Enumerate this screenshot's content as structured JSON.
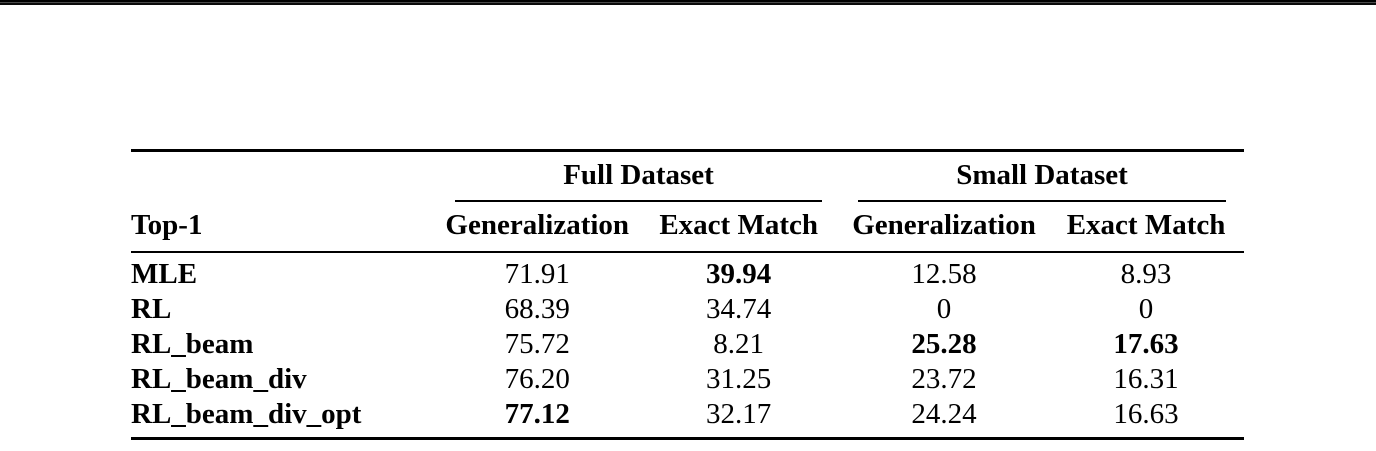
{
  "table": {
    "title_cell": "Top-1",
    "groups": [
      {
        "label": "Full Dataset"
      },
      {
        "label": "Small Dataset"
      }
    ],
    "columns": [
      "Generalization",
      "Exact Match",
      "Generalization",
      "Exact Match"
    ],
    "rows": [
      {
        "label": "MLE",
        "values": [
          "71.91",
          "39.94",
          "12.58",
          "8.93"
        ],
        "bold": [
          false,
          true,
          false,
          false
        ]
      },
      {
        "label": "RL",
        "values": [
          "68.39",
          "34.74",
          "0",
          "0"
        ],
        "bold": [
          false,
          false,
          false,
          false
        ]
      },
      {
        "label": "RL_beam",
        "values": [
          "75.72",
          "8.21",
          "25.28",
          "17.63"
        ],
        "bold": [
          false,
          false,
          true,
          true
        ]
      },
      {
        "label": "RL_beam_div",
        "values": [
          "76.20",
          "31.25",
          "23.72",
          "16.31"
        ],
        "bold": [
          false,
          false,
          false,
          false
        ]
      },
      {
        "label": "RL_beam_div_opt",
        "values": [
          "77.12",
          "32.17",
          "24.24",
          "16.63"
        ],
        "bold": [
          true,
          false,
          false,
          false
        ]
      }
    ]
  }
}
